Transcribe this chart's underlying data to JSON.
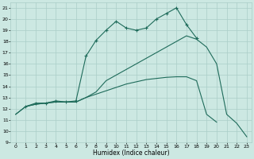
{
  "bg_color": "#cce8e2",
  "grid_color": "#aacec8",
  "line_color": "#1e6b5a",
  "xlabel": "Humidex (Indice chaleur)",
  "xlim": [
    -0.5,
    23.5
  ],
  "ylim": [
    9,
    21.5
  ],
  "xticks": [
    0,
    1,
    2,
    3,
    4,
    5,
    6,
    7,
    8,
    9,
    10,
    11,
    12,
    13,
    14,
    15,
    16,
    17,
    18,
    19,
    20,
    21,
    22,
    23
  ],
  "yticks": [
    9,
    10,
    11,
    12,
    13,
    14,
    15,
    16,
    17,
    18,
    19,
    20,
    21
  ],
  "series_peak_x": [
    1,
    2,
    3,
    4,
    5,
    6,
    7,
    8,
    9,
    10,
    11,
    12,
    13,
    14,
    15,
    16,
    17,
    18
  ],
  "series_peak_y": [
    12.2,
    12.5,
    12.5,
    12.7,
    12.6,
    12.7,
    16.7,
    18.1,
    19.0,
    19.8,
    19.2,
    19.0,
    19.2,
    20.0,
    20.5,
    21.0,
    19.5,
    18.3
  ],
  "series_diag_x": [
    0,
    1,
    2,
    3,
    4,
    5,
    6,
    7,
    8,
    9,
    10,
    11,
    12,
    13,
    14,
    15,
    16,
    17,
    18,
    19,
    20,
    21,
    22,
    23
  ],
  "series_diag_y": [
    11.5,
    12.2,
    12.4,
    12.5,
    12.6,
    12.6,
    12.6,
    13.0,
    13.5,
    14.5,
    15.0,
    15.5,
    16.0,
    16.5,
    17.0,
    17.5,
    18.0,
    18.5,
    18.2,
    17.5,
    16.0,
    11.5,
    10.7,
    9.5
  ],
  "series_low_x": [
    0,
    1,
    2,
    3,
    4,
    5,
    6,
    7,
    8,
    9,
    10,
    11,
    12,
    13,
    14,
    15,
    16,
    17,
    18,
    19,
    20
  ],
  "series_low_y": [
    11.5,
    12.2,
    12.4,
    12.5,
    12.6,
    12.6,
    12.6,
    13.0,
    13.3,
    13.6,
    13.9,
    14.2,
    14.4,
    14.6,
    14.7,
    14.8,
    14.85,
    14.85,
    14.5,
    11.5,
    10.8
  ]
}
